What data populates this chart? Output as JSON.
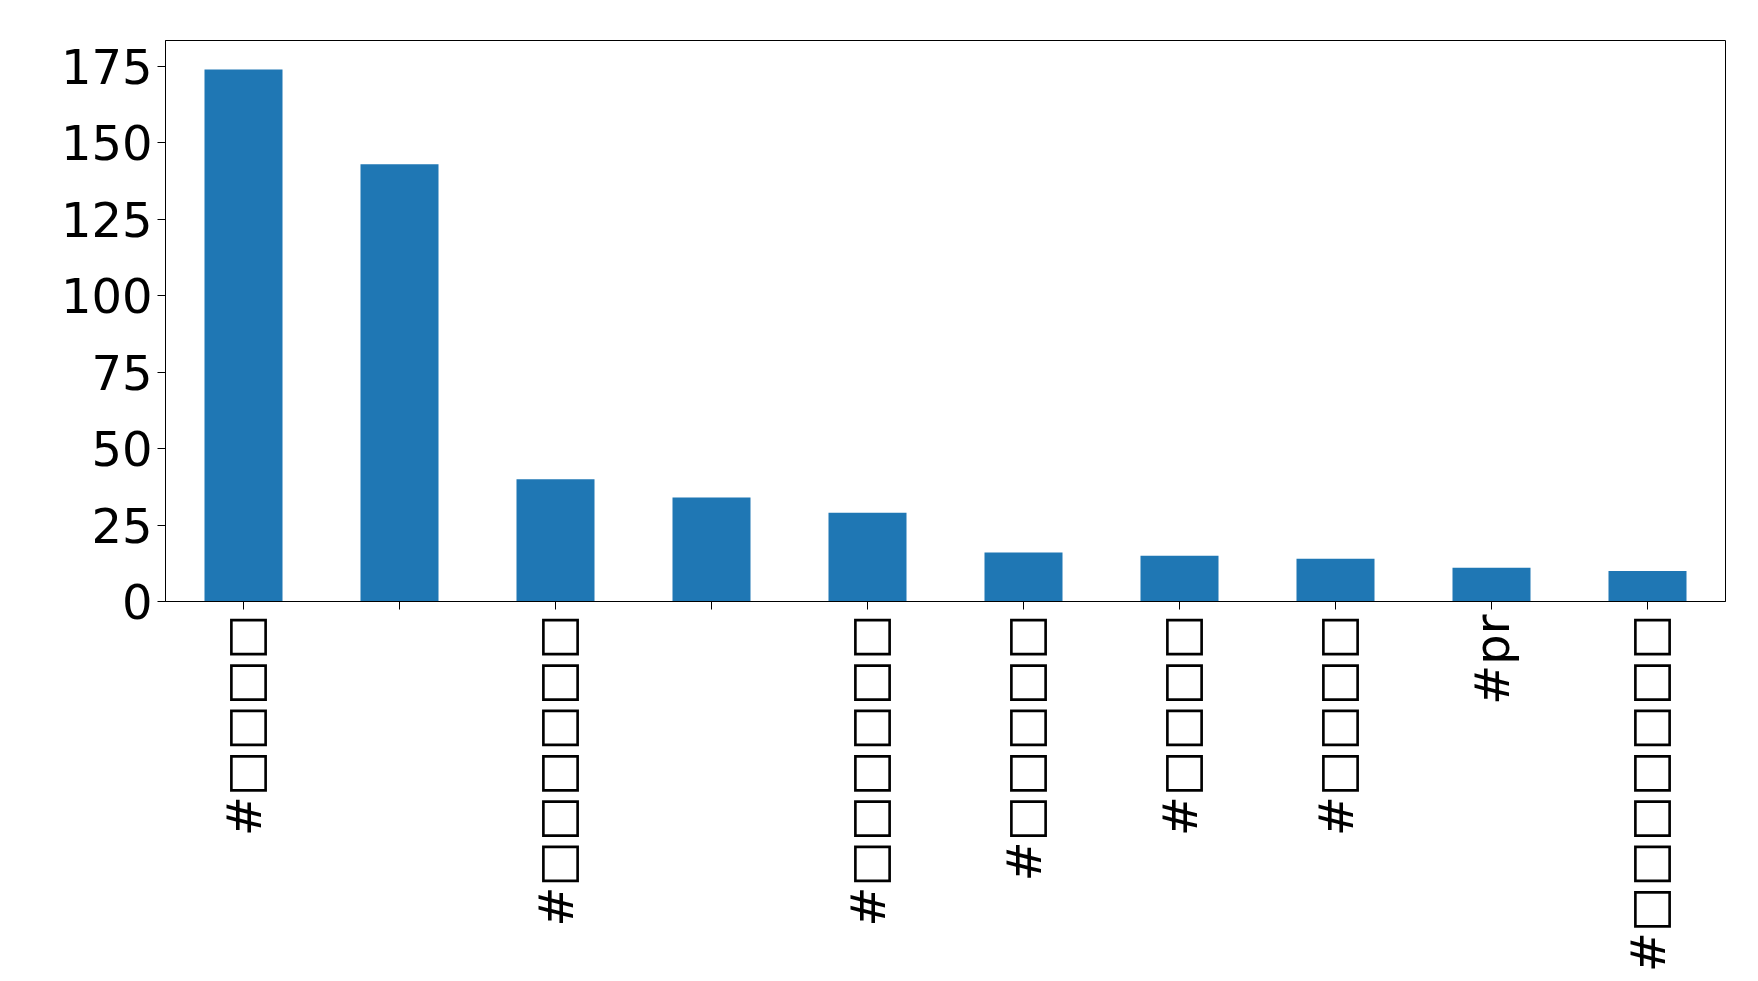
{
  "chart_data": {
    "type": "bar",
    "categories": [
      "#□□□□",
      null,
      "#□□□□□□",
      null,
      "#□□□□□□",
      "#□□□□□",
      "#□□□□",
      "#□□□□",
      "#pr",
      "#□□□□□□□"
    ],
    "values": [
      174,
      143,
      40,
      34,
      29,
      16,
      15,
      14,
      11,
      10
    ],
    "color": "#1f77b4",
    "ylim": [
      0,
      183.5
    ],
    "yticks": [
      0,
      25,
      50,
      75,
      100,
      125,
      150,
      175
    ],
    "grid": false
  }
}
